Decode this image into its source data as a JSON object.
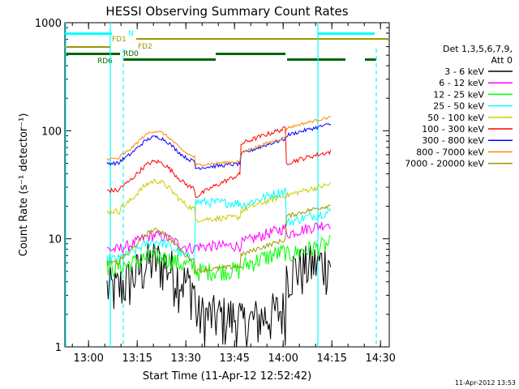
{
  "chart_data": {
    "type": "line",
    "title": "HESSI Observing Summary Count Rates",
    "xlabel": "Start Time (11-Apr-12 12:52:42)",
    "ylabel": "Count Rate (s⁻¹ detector⁻¹)",
    "yscale": "log",
    "ylim": [
      1,
      1000
    ],
    "xlim_minutes_after_start": [
      0,
      100
    ],
    "x_ticks": [
      "13:00",
      "13:15",
      "13:30",
      "13:45",
      "14:00",
      "14:15",
      "14:30"
    ],
    "y_ticks": [
      "1",
      "10",
      "100",
      "1000"
    ],
    "timestamp": "11-Apr-2012 13:53",
    "legend": {
      "header_line1": "Det 1,3,5,6,7,9,",
      "header_line2": "Att 0",
      "placement": "right"
    },
    "flag_bars": {
      "labels": [
        "N",
        "FD1",
        "FD2",
        "RD0",
        "RD6"
      ],
      "colors": {
        "N": "#00ffff",
        "FD1": "#999900",
        "FD2": "#999900",
        "RD0": "#006600",
        "RD6": "#006600"
      }
    },
    "series": [
      {
        "name": "3 - 6 keV",
        "color": "#000000"
      },
      {
        "name": "6 - 12 keV",
        "color": "#ff00ff"
      },
      {
        "name": "12 - 25 keV",
        "color": "#00ff00"
      },
      {
        "name": "25 - 50 keV",
        "color": "#00ffff"
      },
      {
        "name": "50 - 100 keV",
        "color": "#cccc00"
      },
      {
        "name": "100 - 300 keV",
        "color": "#ff0000"
      },
      {
        "name": "300 - 800 keV",
        "color": "#0000ff"
      },
      {
        "name": "800 - 7000 keV",
        "color": "#ff8800"
      },
      {
        "name": "7000 - 20000 keV",
        "color": "#999900"
      }
    ]
  }
}
